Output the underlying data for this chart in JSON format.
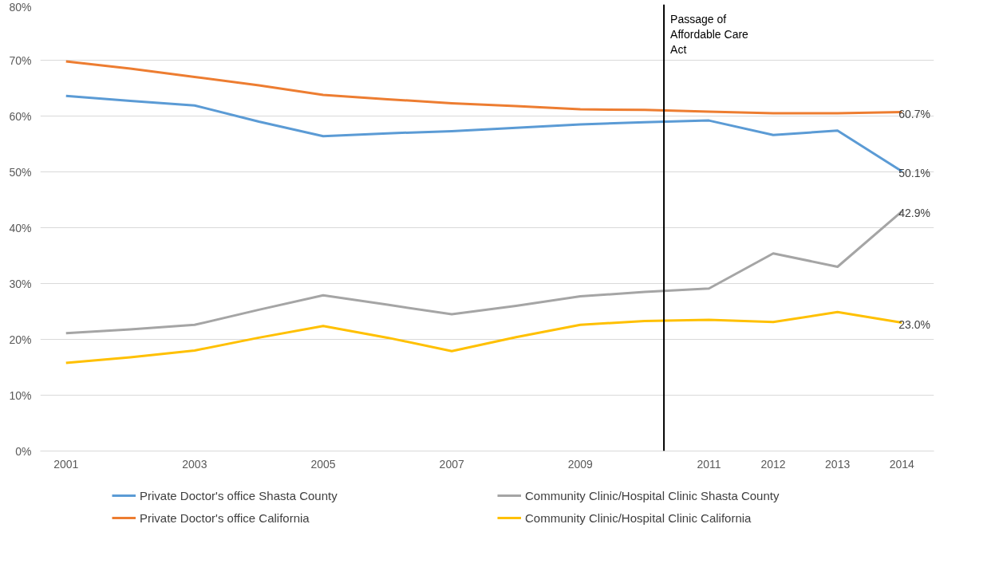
{
  "chart_data": {
    "type": "line",
    "x": [
      2001,
      2002,
      2003,
      2004,
      2005,
      2006,
      2007,
      2008,
      2009,
      2010,
      2011,
      2012,
      2013,
      2014
    ],
    "xlim": [
      2000.6,
      2014.5
    ],
    "xticks": [
      2001,
      2003,
      2005,
      2007,
      2009,
      2011,
      2012,
      2013,
      2014
    ],
    "ylim": [
      0,
      80
    ],
    "yticks": [
      {
        "value": 0,
        "label": "0%"
      },
      {
        "value": 10,
        "label": "10%"
      },
      {
        "value": 20,
        "label": "20%"
      },
      {
        "value": 30,
        "label": "30%"
      },
      {
        "value": 40,
        "label": "40%"
      },
      {
        "value": 50,
        "label": "50%"
      },
      {
        "value": 60,
        "label": "60%"
      },
      {
        "value": 70,
        "label": "70%"
      },
      {
        "value": 80,
        "label": "80%"
      }
    ],
    "grid": "y",
    "legend": "bottom",
    "marker": "none",
    "line_style": "solid",
    "series": [
      {
        "name": "Private Doctor's office Shasta County",
        "color": "#5b9bd5",
        "values": [
          63.6,
          62.7,
          61.9,
          59.0,
          56.4,
          56.9,
          57.3,
          57.9,
          58.5,
          58.9,
          59.2,
          56.6,
          57.4,
          50.1
        ],
        "value_labels": [
          null,
          null,
          null,
          null,
          null,
          null,
          null,
          null,
          null,
          null,
          null,
          null,
          null,
          "50.1%"
        ]
      },
      {
        "name": "Private Doctor's office California",
        "color": "#ed7d31",
        "values": [
          69.8,
          68.5,
          67.0,
          65.5,
          63.8,
          63.0,
          62.3,
          61.8,
          61.2,
          61.1,
          60.8,
          60.5,
          60.5,
          60.7
        ],
        "value_labels": [
          null,
          null,
          null,
          null,
          null,
          null,
          null,
          null,
          null,
          null,
          null,
          null,
          null,
          "60.7%"
        ]
      },
      {
        "name": "Community Clinic/Hospital Clinic Shasta County",
        "color": "#a5a5a5",
        "values": [
          21.1,
          21.8,
          22.6,
          25.3,
          27.9,
          26.2,
          24.5,
          26.0,
          27.7,
          28.5,
          29.1,
          35.4,
          33.0,
          42.9
        ],
        "value_labels": [
          null,
          null,
          null,
          null,
          null,
          null,
          null,
          null,
          null,
          null,
          null,
          null,
          null,
          "42.9%"
        ]
      },
      {
        "name": "Community Clinic/Hospital Clinic California",
        "color": "#ffc000",
        "values": [
          15.8,
          16.8,
          18.0,
          20.3,
          22.4,
          20.3,
          17.9,
          20.4,
          22.6,
          23.3,
          23.5,
          23.1,
          24.9,
          23.0
        ],
        "value_labels": [
          null,
          null,
          null,
          null,
          null,
          null,
          null,
          null,
          null,
          null,
          null,
          null,
          null,
          "23.0%"
        ]
      }
    ],
    "ref_lines": [
      {
        "axis": "x",
        "value": 2010.3,
        "label": "Passage of\nAffordable Care\nAct",
        "color": "#000000"
      }
    ]
  }
}
